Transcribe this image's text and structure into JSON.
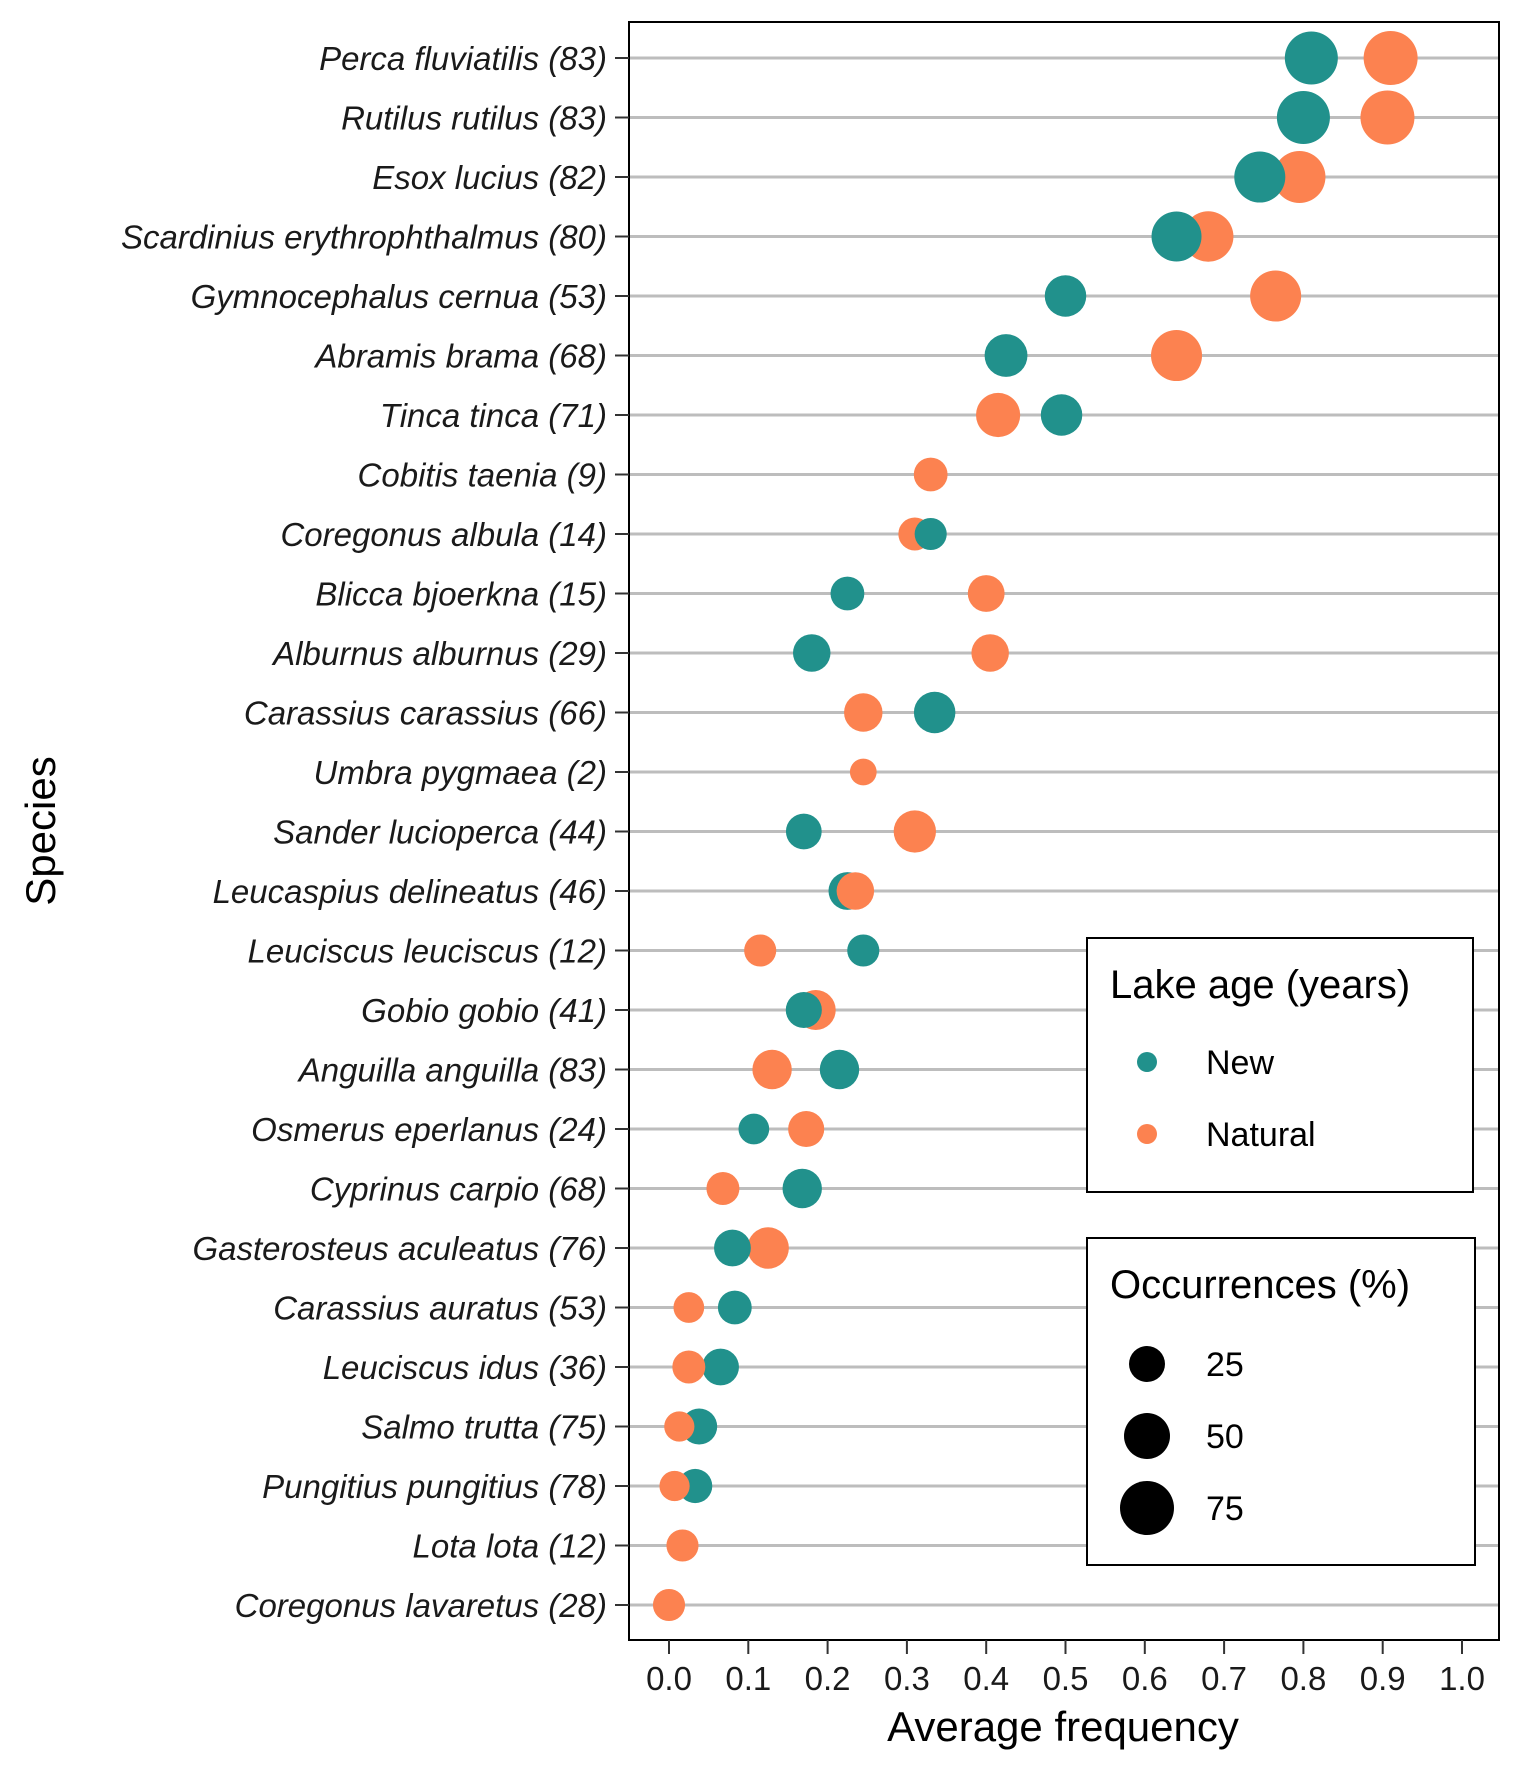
{
  "chart_data": {
    "type": "scatter",
    "title": "",
    "xlabel": "Average frequency",
    "ylabel": "Species",
    "xlim": [
      -0.05,
      1.05
    ],
    "x_ticks": [
      "0.0",
      "0.1",
      "0.2",
      "0.3",
      "0.4",
      "0.5",
      "0.6",
      "0.7",
      "0.8",
      "0.9",
      "1.0"
    ],
    "grid": "horizontal",
    "legend_placement": "bottom-right",
    "series_colors": {
      "New": "#21918c",
      "Natural": "#fc8250"
    },
    "color_legend": {
      "title": "Lake age (years)",
      "entries": [
        "New",
        "Natural"
      ]
    },
    "size_legend": {
      "title": "Occurrences (%)",
      "entries": [
        "25",
        "50",
        "75"
      ]
    },
    "species": [
      {
        "label": "Perca fluviatilis (83)",
        "new": {
          "x": 0.81,
          "occ": 95
        },
        "natural": {
          "x": 0.91,
          "occ": 100
        }
      },
      {
        "label": "Rutilus rutilus (83)",
        "new": {
          "x": 0.8,
          "occ": 95
        },
        "natural": {
          "x": 0.906,
          "occ": 100
        }
      },
      {
        "label": "Esox lucius (82)",
        "new": {
          "x": 0.745,
          "occ": 85
        },
        "natural": {
          "x": 0.795,
          "occ": 90
        }
      },
      {
        "label": "Scardinius erythrophthalmus (80)",
        "new": {
          "x": 0.64,
          "occ": 80
        },
        "natural": {
          "x": 0.68,
          "occ": 82
        }
      },
      {
        "label": "Gymnocephalus cernua (53)",
        "new": {
          "x": 0.5,
          "occ": 45
        },
        "natural": {
          "x": 0.765,
          "occ": 85
        }
      },
      {
        "label": "Abramis brama (68)",
        "new": {
          "x": 0.425,
          "occ": 50
        },
        "natural": {
          "x": 0.64,
          "occ": 85
        }
      },
      {
        "label": "Tinca tinca (71)",
        "new": {
          "x": 0.495,
          "occ": 45
        },
        "natural": {
          "x": 0.415,
          "occ": 55
        }
      },
      {
        "label": "Cobitis taenia (9)",
        "new": null,
        "natural": {
          "x": 0.33,
          "occ": 22
        }
      },
      {
        "label": "Coregonus albula (14)",
        "new": {
          "x": 0.33,
          "occ": 18
        },
        "natural": {
          "x": 0.31,
          "occ": 20
        }
      },
      {
        "label": "Blicca bjoerkna (15)",
        "new": {
          "x": 0.225,
          "occ": 22
        },
        "natural": {
          "x": 0.4,
          "occ": 30
        }
      },
      {
        "label": "Alburnus alburnus (29)",
        "new": {
          "x": 0.18,
          "occ": 32
        },
        "natural": {
          "x": 0.405,
          "occ": 32
        }
      },
      {
        "label": "Carassius carassius (66)",
        "new": {
          "x": 0.335,
          "occ": 45
        },
        "natural": {
          "x": 0.245,
          "occ": 35
        }
      },
      {
        "label": "Umbra pygmaea (2)",
        "new": null,
        "natural": {
          "x": 0.245,
          "occ": 8
        }
      },
      {
        "label": "Sander lucioperca (44)",
        "new": {
          "x": 0.17,
          "occ": 27
        },
        "natural": {
          "x": 0.31,
          "occ": 48
        }
      },
      {
        "label": "Leucaspius delineatus (46)",
        "new": {
          "x": 0.225,
          "occ": 33
        },
        "natural": {
          "x": 0.235,
          "occ": 32
        }
      },
      {
        "label": "Leuciscus leuciscus (12)",
        "new": {
          "x": 0.245,
          "occ": 18
        },
        "natural": {
          "x": 0.115,
          "occ": 18
        }
      },
      {
        "label": "Gobio gobio (41)",
        "new": {
          "x": 0.17,
          "occ": 28
        },
        "natural": {
          "x": 0.185,
          "occ": 40
        }
      },
      {
        "label": "Anguilla anguilla (83)",
        "new": {
          "x": 0.215,
          "occ": 38
        },
        "natural": {
          "x": 0.13,
          "occ": 38
        }
      },
      {
        "label": "Osmerus eperlanus (24)",
        "new": {
          "x": 0.107,
          "occ": 15
        },
        "natural": {
          "x": 0.173,
          "occ": 28
        }
      },
      {
        "label": "Cyprinus carpio (68)",
        "new": {
          "x": 0.168,
          "occ": 38
        },
        "natural": {
          "x": 0.068,
          "occ": 20
        }
      },
      {
        "label": "Gasterosteus aculeatus (76)",
        "new": {
          "x": 0.08,
          "occ": 30
        },
        "natural": {
          "x": 0.125,
          "occ": 45
        }
      },
      {
        "label": "Carassius auratus (53)",
        "new": {
          "x": 0.083,
          "occ": 22
        },
        "natural": {
          "x": 0.025,
          "occ": 15
        }
      },
      {
        "label": "Leuciscus idus (36)",
        "new": {
          "x": 0.065,
          "occ": 30
        },
        "natural": {
          "x": 0.025,
          "occ": 20
        }
      },
      {
        "label": "Salmo trutta (75)",
        "new": {
          "x": 0.038,
          "occ": 28
        },
        "natural": {
          "x": 0.013,
          "occ": 14
        }
      },
      {
        "label": "Pungitius pungitius (78)",
        "new": {
          "x": 0.033,
          "occ": 23
        },
        "natural": {
          "x": 0.007,
          "occ": 14
        }
      },
      {
        "label": "Lota lota (12)",
        "new": null,
        "natural": {
          "x": 0.017,
          "occ": 18
        }
      },
      {
        "label": "Coregonus lavaretus (28)",
        "new": null,
        "natural": {
          "x": 0.0,
          "occ": 18
        }
      }
    ]
  }
}
